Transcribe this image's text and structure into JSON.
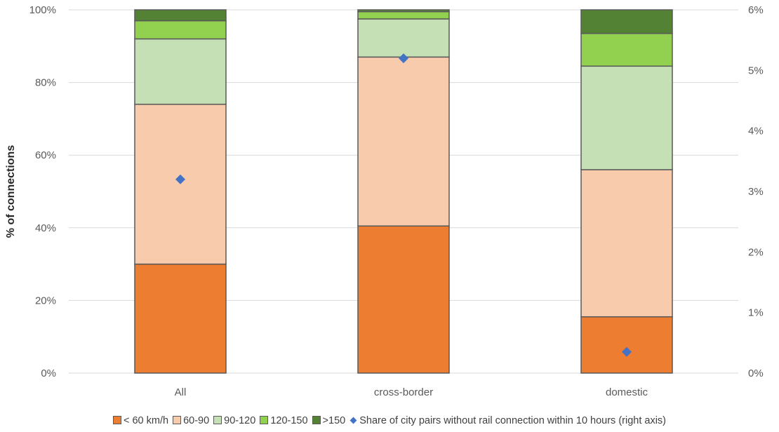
{
  "chart_data": {
    "type": "bar",
    "stacked": true,
    "categories": [
      "All",
      "cross-border",
      "domestic"
    ],
    "series": [
      {
        "name": "< 60 km/h",
        "color": "#ed7d31",
        "values": [
          30,
          40.5,
          15.5
        ]
      },
      {
        "name": "60-90",
        "color": "#f8cbad",
        "values": [
          44,
          46.5,
          40.5
        ]
      },
      {
        "name": "90-120",
        "color": "#c5e0b4",
        "values": [
          18,
          10.5,
          28.5
        ]
      },
      {
        "name": "120-150",
        "color": "#92d050",
        "values": [
          5,
          2,
          9
        ]
      },
      {
        "name": ">150",
        "color": "#548235",
        "values": [
          3,
          0.5,
          6.5
        ]
      }
    ],
    "secondary_series": {
      "name": "Share of city pairs without rail connection within 10 hours (right axis)",
      "type": "scatter",
      "marker": "diamond",
      "color": "#4472c4",
      "values": [
        3.2,
        5.2,
        0.35
      ]
    },
    "ylabel": "% of connections",
    "ylim": [
      0,
      100
    ],
    "yticks": [
      "0%",
      "20%",
      "40%",
      "60%",
      "80%",
      "100%"
    ],
    "y2lim": [
      0,
      6
    ],
    "y2ticks": [
      "0%",
      "1%",
      "2%",
      "3%",
      "4%",
      "5%",
      "6%"
    ],
    "grid": true,
    "legend_position": "bottom"
  }
}
